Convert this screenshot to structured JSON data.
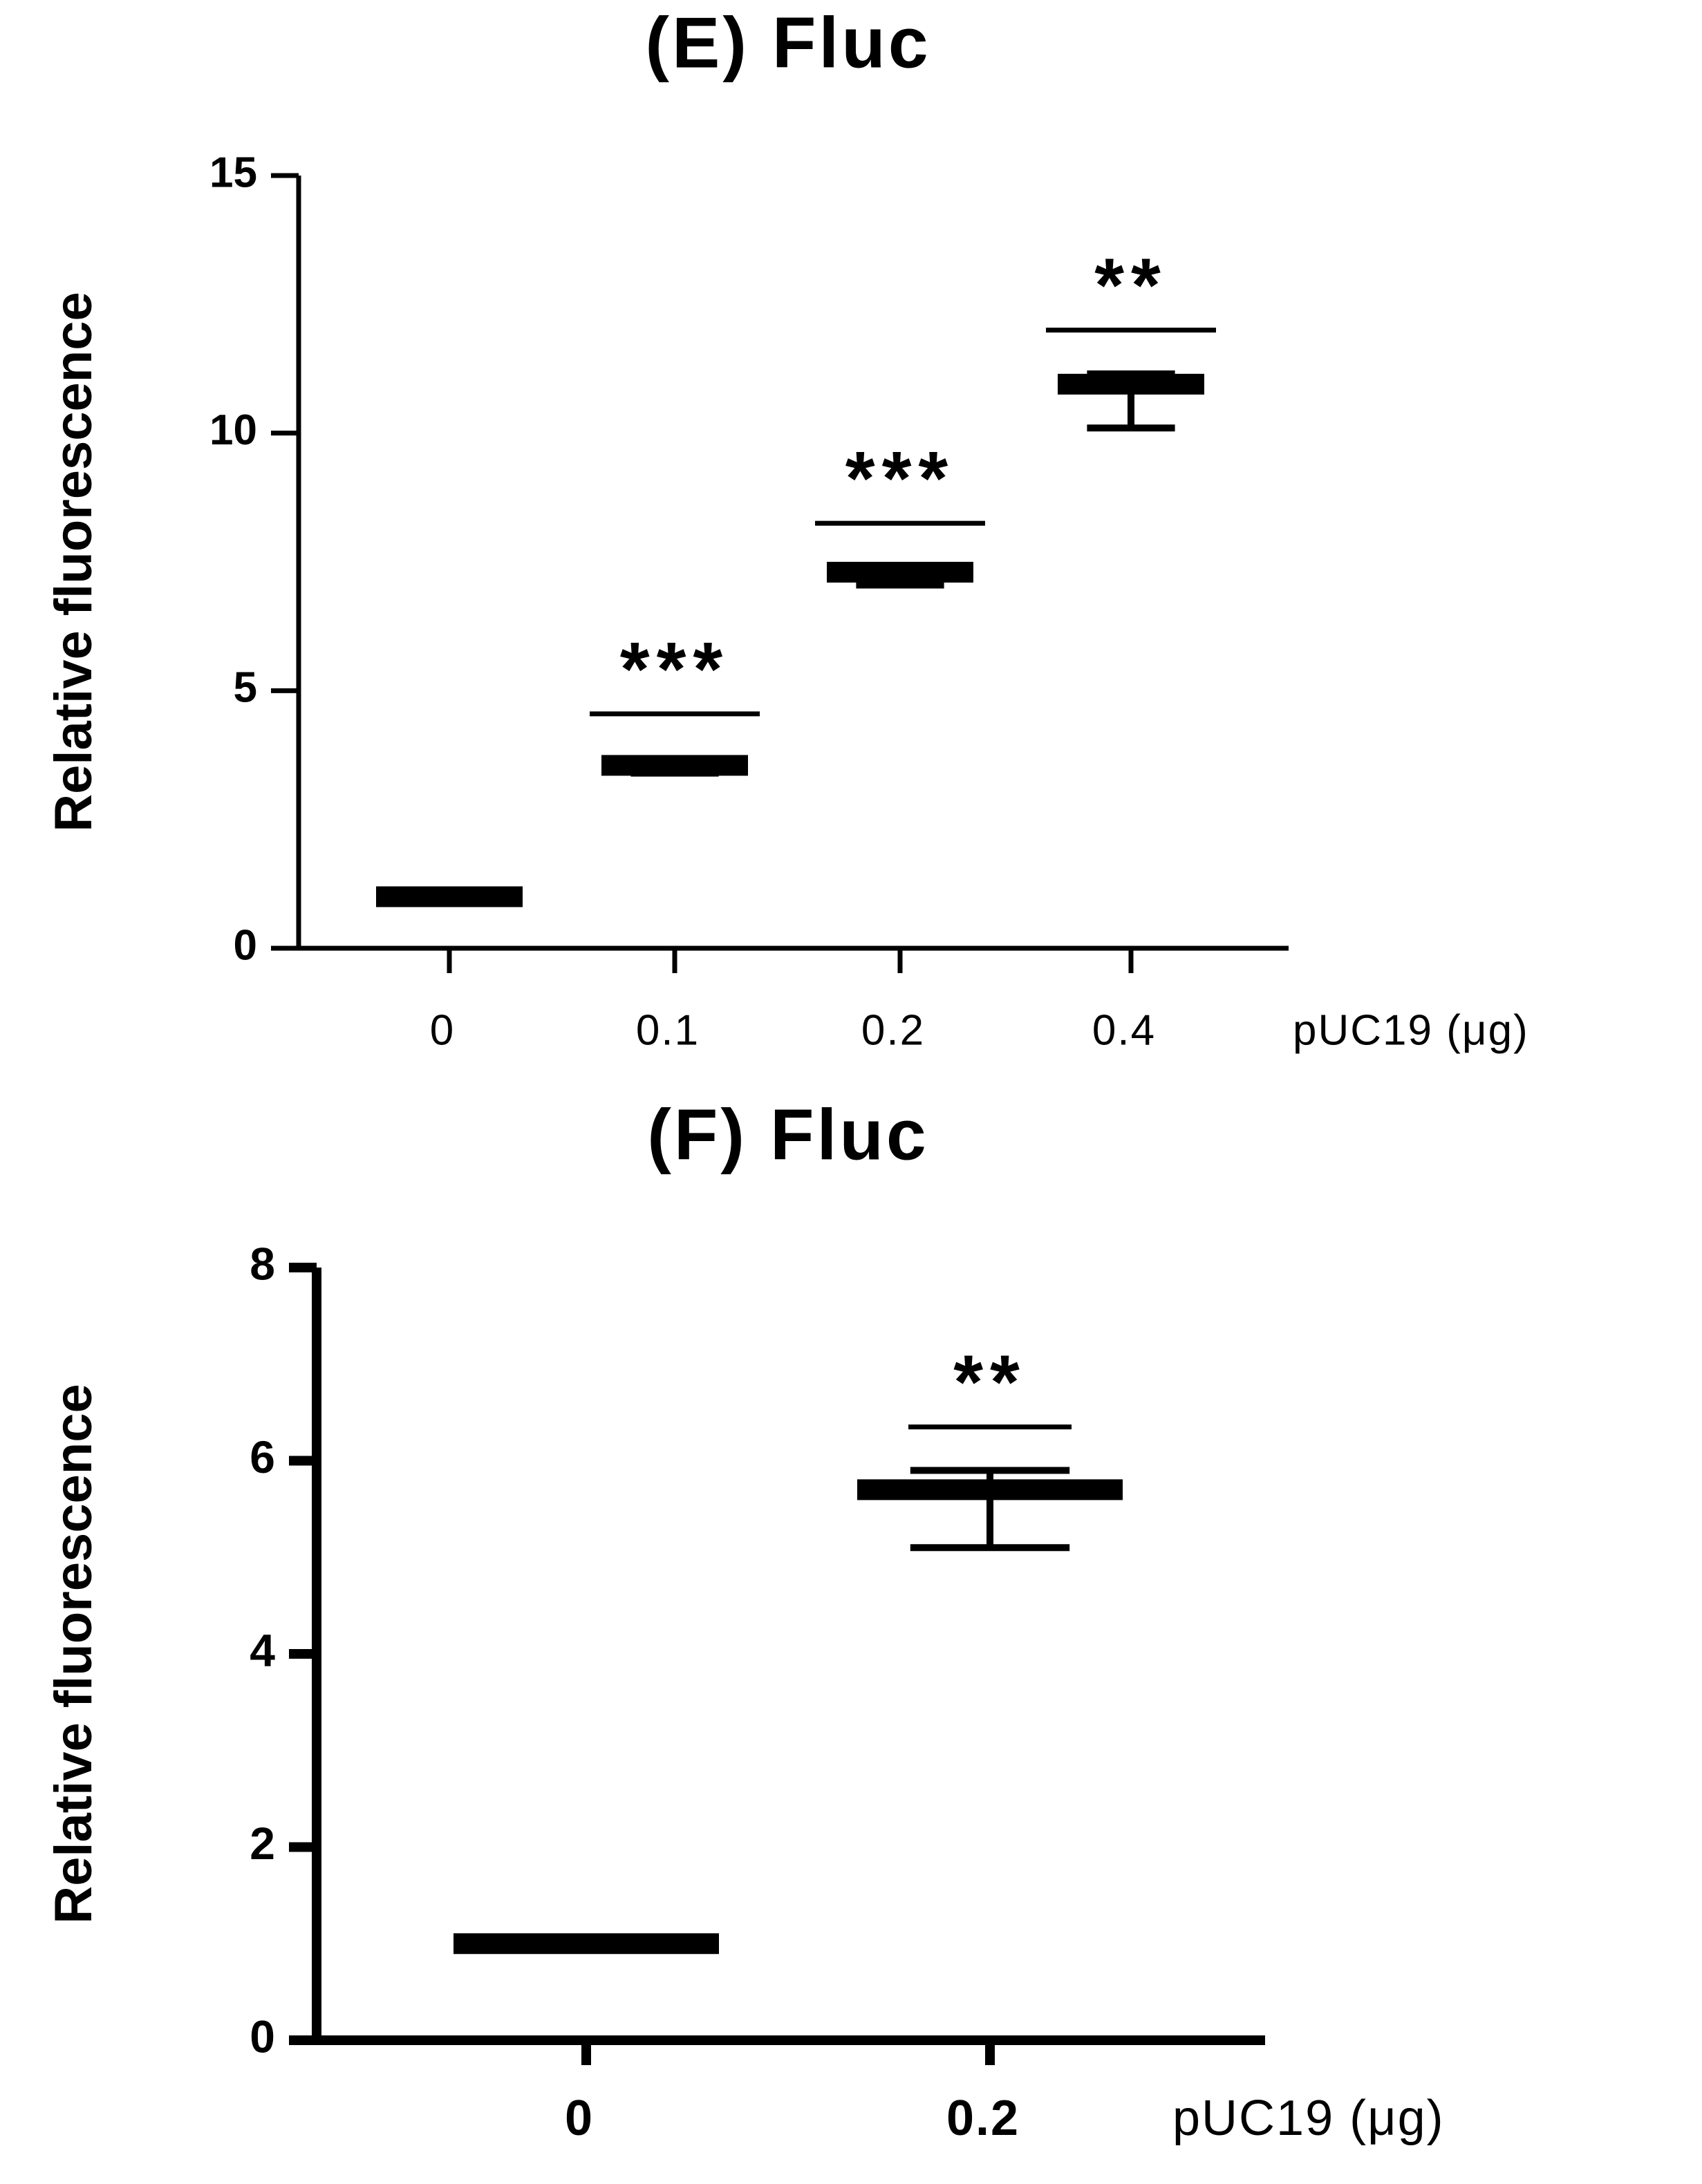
{
  "chart_data": [
    {
      "type": "errorbar",
      "title": "(E) Fluc",
      "y_label": "Relative fluorescence",
      "x_label": "pUC19 (μg)",
      "categories": [
        "0",
        "0.1",
        "0.2",
        "0.4"
      ],
      "values": [
        1.0,
        3.55,
        7.3,
        10.95
      ],
      "err_minus": [
        0.05,
        0.15,
        0.25,
        0.85
      ],
      "err_plus": [
        0.05,
        0.05,
        0.1,
        0.2
      ],
      "significance": [
        null,
        "***",
        "***",
        "**"
      ],
      "sig_y": [
        null,
        4.55,
        8.25,
        12.0
      ],
      "color": "#000000",
      "ylim": [
        0,
        15
      ],
      "yticks": [
        0,
        5,
        10,
        15
      ]
    },
    {
      "type": "errorbar",
      "title": "(F) Fluc",
      "y_label": "Relative fluorescence",
      "x_label": "pUC19 (μg)",
      "categories": [
        "0",
        "0.2"
      ],
      "values": [
        1.0,
        5.7
      ],
      "err_minus": [
        0.05,
        0.6
      ],
      "err_plus": [
        0.05,
        0.2
      ],
      "significance": [
        null,
        "**"
      ],
      "sig_y": [
        null,
        6.35
      ],
      "color": "#000000",
      "ylim": [
        0,
        8
      ],
      "yticks": [
        0,
        2,
        4,
        6,
        8
      ]
    }
  ]
}
